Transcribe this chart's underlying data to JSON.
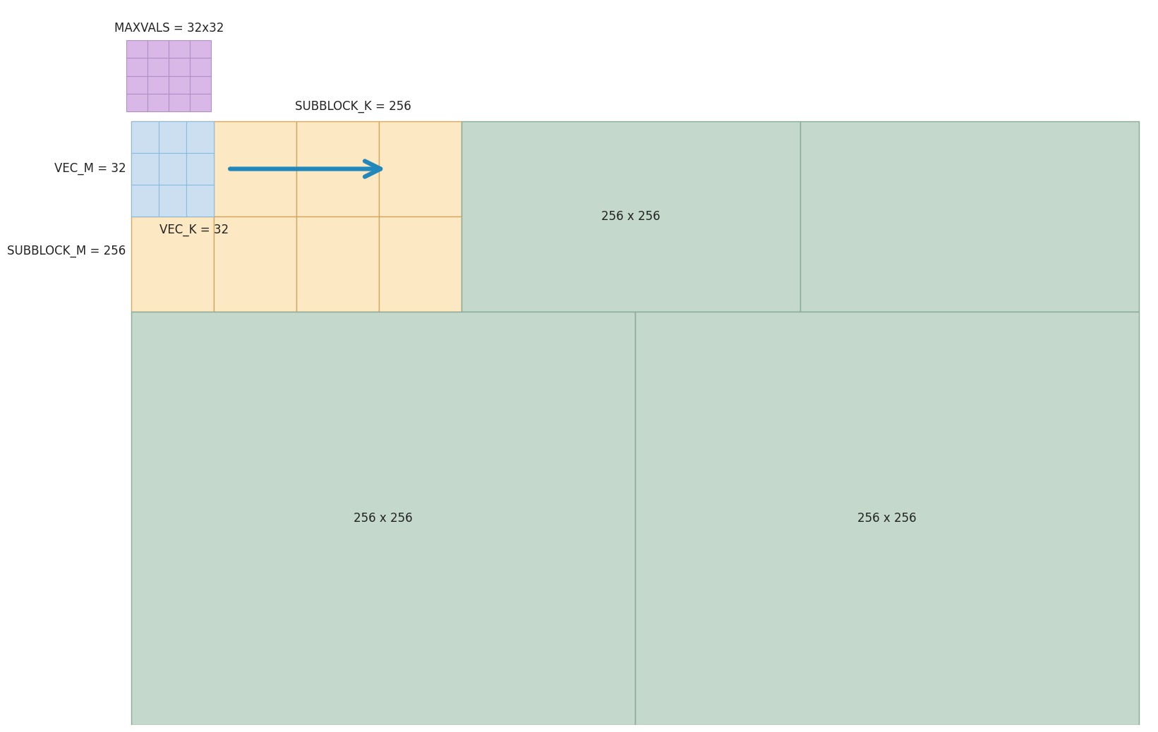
{
  "bg_color": "#ffffff",
  "purple_color": "#d9b8e8",
  "purple_border": "#b090c8",
  "orange_color": "#fde8c4",
  "orange_border": "#d4a860",
  "blue_color": "#ccdff0",
  "blue_border": "#88bbdd",
  "green_color": "#c4d8cc",
  "green_border": "#88aa98",
  "arrow_color": "#2288bb",
  "text_color": "#222222",
  "maxvals_label": "MAXVALS = 32x32",
  "subblock_k_label": "SUBBLOCK_K = 256",
  "vec_m_label": "VEC_M = 32",
  "subblock_m_label": "SUBBLOCK_M = 256",
  "vec_k_label": "VEC_K = 32",
  "label_256x256": "256 x 256"
}
